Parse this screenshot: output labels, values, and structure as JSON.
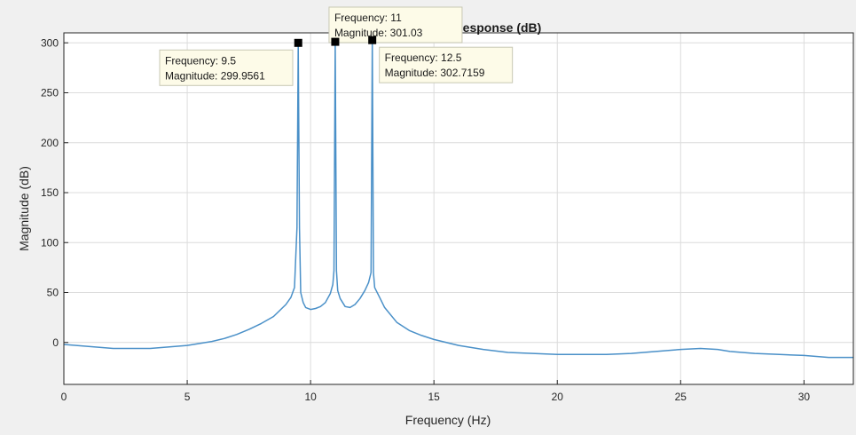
{
  "chart_data": {
    "type": "line",
    "title": "esponse (dB)",
    "xlabel": "Frequency (Hz)",
    "ylabel": "Magnitude (dB)",
    "xlim": [
      0,
      32
    ],
    "ylim": [
      -42,
      310
    ],
    "xticks": [
      0,
      5,
      10,
      15,
      20,
      25,
      30
    ],
    "yticks": [
      0,
      50,
      100,
      150,
      200,
      250,
      300
    ],
    "grid": true,
    "line_color": "#4a90c8",
    "series": [
      {
        "x": [
          0,
          0.5,
          1,
          1.5,
          2,
          2.5,
          3,
          3.5,
          4,
          4.5,
          5,
          5.5,
          6,
          6.5,
          7,
          7.5,
          8,
          8.5,
          9,
          9.2,
          9.35,
          9.45,
          9.5,
          9.55,
          9.6,
          9.7,
          9.8,
          10,
          10.2,
          10.4,
          10.6,
          10.8,
          10.9,
          10.95,
          11,
          11.05,
          11.1,
          11.2,
          11.4,
          11.6,
          11.8,
          12,
          12.2,
          12.35,
          12.45,
          12.5,
          12.55,
          12.6,
          12.8,
          13,
          13.5,
          14,
          14.5,
          15,
          16,
          17,
          18,
          19,
          20,
          21,
          22,
          23,
          24,
          25,
          25.8,
          26.5,
          27,
          28,
          29,
          30,
          31,
          32
        ],
        "y": [
          -2,
          -3,
          -4,
          -5,
          -6,
          -6,
          -6,
          -6,
          -5,
          -4,
          -3,
          -1,
          1,
          4,
          8,
          13,
          19,
          26,
          38,
          45,
          55,
          115,
          300,
          115,
          50,
          40,
          35,
          33,
          34,
          36,
          40,
          49,
          58,
          72,
          301,
          72,
          52,
          44,
          36,
          35,
          38,
          44,
          52,
          60,
          70,
          302.7,
          70,
          55,
          45,
          35,
          20,
          12,
          7,
          3,
          -3,
          -7,
          -10,
          -11,
          -12,
          -12,
          -12,
          -11,
          -9,
          -7,
          -6,
          -7,
          -9,
          -11,
          -12,
          -13,
          -15,
          -15
        ]
      }
    ],
    "datatips": [
      {
        "x": 9.5,
        "y": 299.9561,
        "frequency_label": "Frequency: 9.5",
        "magnitude_label": "Magnitude: 299.9561",
        "position": "left-below"
      },
      {
        "x": 11,
        "y": 301.03,
        "frequency_label": "Frequency: 11",
        "magnitude_label": "Magnitude: 301.03",
        "position": "above"
      },
      {
        "x": 12.5,
        "y": 302.7159,
        "frequency_label": "Frequency: 12.5",
        "magnitude_label": "Magnitude: 302.7159",
        "position": "right-below"
      }
    ]
  }
}
